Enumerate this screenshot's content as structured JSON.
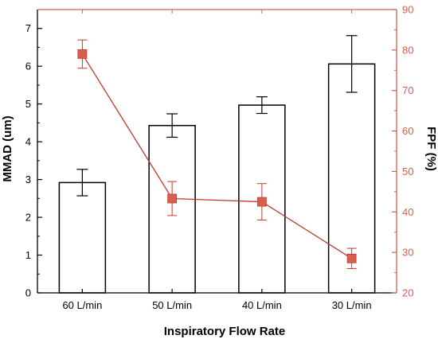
{
  "chart_data": {
    "type": "bar",
    "title": "",
    "xlabel": "Inspiratory Flow Rate",
    "categories": [
      "60 L/min",
      "50 L/min",
      "40 L/min",
      "30 L/min"
    ],
    "y_left": {
      "label": "MMAD (um)",
      "ylim": [
        0,
        7.5
      ],
      "ticks": [
        0,
        1,
        2,
        3,
        4,
        5,
        6,
        7
      ]
    },
    "y_right": {
      "label": "FPF (%)",
      "ylim": [
        20,
        90
      ],
      "ticks": [
        20,
        30,
        40,
        50,
        60,
        70,
        80,
        90
      ]
    },
    "series": [
      {
        "type": "bar",
        "axis": "left",
        "values": [
          2.92,
          4.43,
          4.97,
          6.06
        ],
        "errors": [
          0.35,
          0.31,
          0.22,
          0.75
        ]
      },
      {
        "type": "line",
        "axis": "right",
        "values": [
          79.0,
          43.3,
          42.5,
          28.5
        ],
        "errors": [
          3.5,
          4.2,
          4.5,
          2.5
        ]
      }
    ],
    "grid": false,
    "legend": "none"
  },
  "colors": {
    "axis_left": "#000000",
    "axis_right": "#d65f4d",
    "bars_fill": "#ffffff",
    "bars_stroke": "#000000",
    "line": "#c0392b",
    "marker": "#d65f4d"
  }
}
